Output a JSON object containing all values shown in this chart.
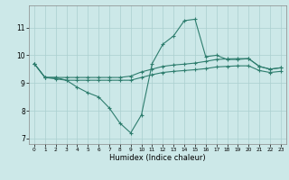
{
  "xlabel": "Humidex (Indice chaleur)",
  "x": [
    0,
    1,
    2,
    3,
    4,
    5,
    6,
    7,
    8,
    9,
    10,
    11,
    12,
    13,
    14,
    15,
    16,
    17,
    18,
    19,
    20,
    21,
    22,
    23
  ],
  "line_volatile": [
    9.7,
    9.2,
    9.2,
    9.1,
    8.85,
    8.65,
    8.5,
    8.1,
    7.55,
    7.2,
    7.85,
    9.7,
    10.4,
    10.7,
    11.25,
    11.3,
    9.95,
    10.0,
    9.85,
    9.85,
    9.88,
    9.6,
    9.5,
    9.55
  ],
  "line_upper": [
    9.7,
    9.2,
    9.2,
    9.2,
    9.2,
    9.2,
    9.2,
    9.2,
    9.2,
    9.25,
    9.4,
    9.5,
    9.6,
    9.65,
    9.68,
    9.72,
    9.78,
    9.85,
    9.87,
    9.88,
    9.88,
    9.6,
    9.5,
    9.55
  ],
  "line_lower": [
    9.7,
    9.2,
    9.15,
    9.1,
    9.1,
    9.1,
    9.1,
    9.1,
    9.1,
    9.1,
    9.2,
    9.3,
    9.38,
    9.42,
    9.45,
    9.48,
    9.52,
    9.58,
    9.6,
    9.62,
    9.62,
    9.45,
    9.38,
    9.42
  ],
  "color": "#2e7d6e",
  "bg_color": "#cce8e8",
  "grid_color": "#aacfcf",
  "xlim": [
    -0.5,
    23.5
  ],
  "ylim": [
    6.8,
    11.8
  ],
  "yticks": [
    7,
    8,
    9,
    10,
    11
  ],
  "xticks": [
    0,
    1,
    2,
    3,
    4,
    5,
    6,
    7,
    8,
    9,
    10,
    11,
    12,
    13,
    14,
    15,
    16,
    17,
    18,
    19,
    20,
    21,
    22,
    23
  ]
}
